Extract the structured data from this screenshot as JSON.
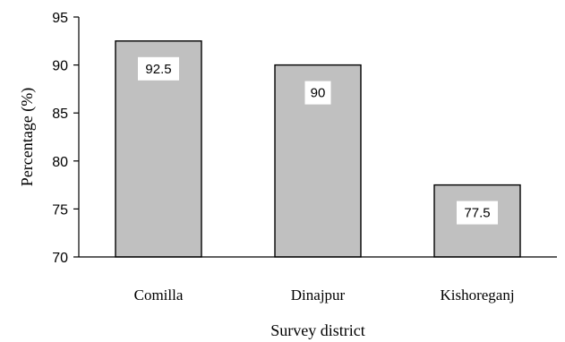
{
  "chart_data": {
    "type": "bar",
    "categories": [
      "Comilla",
      "Dinajpur",
      "Kishoreganj"
    ],
    "values": [
      92.5,
      90,
      77.5
    ],
    "data_labels": [
      "92.5",
      "90",
      "77.5"
    ],
    "xlabel": "Survey district",
    "ylabel": "Percentage (%)",
    "ylim": [
      70,
      95
    ],
    "yticks": [
      70,
      75,
      80,
      85,
      90,
      95
    ],
    "grid": false,
    "legend": "none",
    "bar_color": "#c0c0c0",
    "bar_edge_color": "#000000",
    "label_box_color": "#ffffff"
  }
}
